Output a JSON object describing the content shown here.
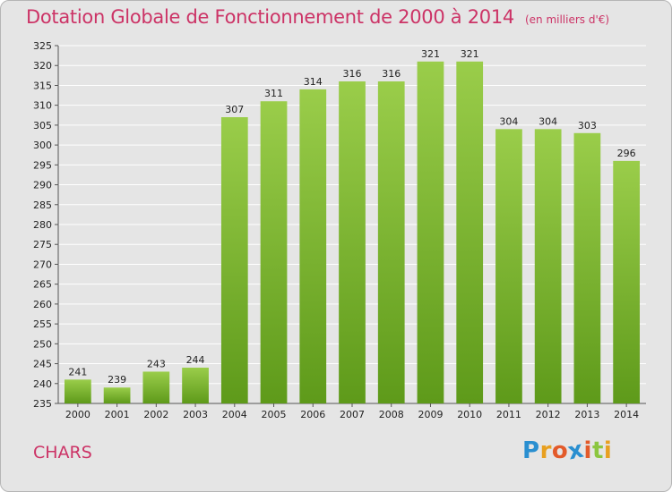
{
  "header": {
    "title": "Dotation Globale de Fonctionnement de 2000 à 2014",
    "subtitle": "(en milliers d'€)"
  },
  "footer": {
    "commune": "CHARS",
    "logo_letters": [
      "P",
      "r",
      "o",
      "x",
      "i",
      "t",
      "i"
    ],
    "logo_colors": [
      "#2a8fd0",
      "#e8a020",
      "#e35a2a",
      "#2a8fd0",
      "#e35a2a",
      "#8cc63f",
      "#e8a020"
    ]
  },
  "chart_data": {
    "type": "bar",
    "title": "Dotation Globale de Fonctionnement de 2000 à 2014",
    "subtitle": "(en milliers d'€)",
    "xlabel": "",
    "ylabel": "",
    "categories": [
      "2000",
      "2001",
      "2002",
      "2003",
      "2004",
      "2005",
      "2006",
      "2007",
      "2008",
      "2009",
      "2010",
      "2011",
      "2012",
      "2013",
      "2014"
    ],
    "values": [
      241,
      239,
      243,
      244,
      307,
      311,
      314,
      316,
      316,
      321,
      321,
      304,
      304,
      303,
      296
    ],
    "ylim": [
      235,
      325
    ],
    "yticks": [
      235,
      240,
      245,
      250,
      255,
      260,
      265,
      270,
      275,
      280,
      285,
      290,
      295,
      300,
      305,
      310,
      315,
      320,
      325
    ],
    "grid": true,
    "legend": "none",
    "bar_color": "#8cc63f",
    "bar_color_dark": "#5e9a1a",
    "grid_color": "#ffffff",
    "background": "#e5e5e5"
  }
}
